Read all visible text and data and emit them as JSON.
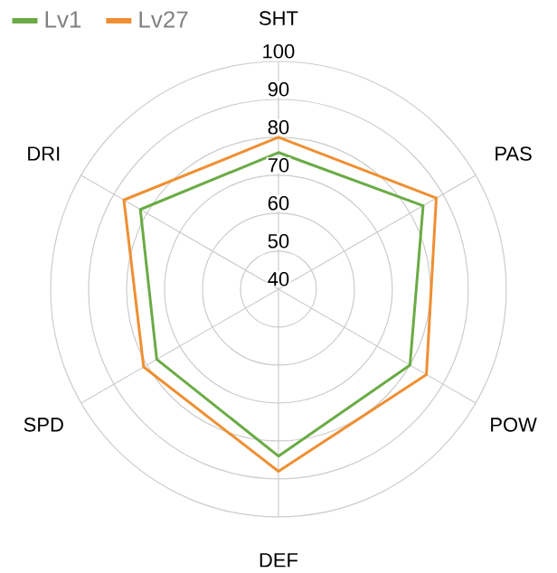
{
  "chart_data": {
    "type": "radar",
    "categories": [
      "SHT",
      "PAS",
      "POW",
      "DEF",
      "SPD",
      "DRI"
    ],
    "series": [
      {
        "name": "Lv1",
        "color": "#6aab45",
        "values": [
          76,
          84,
          80,
          84,
          77,
          82
        ]
      },
      {
        "name": "Lv27",
        "color": "#ef8f32",
        "values": [
          80,
          88,
          85,
          88,
          81,
          87
        ]
      }
    ],
    "ylim": [
      40,
      100
    ],
    "yticks": [
      40,
      50,
      60,
      70,
      80,
      90,
      100
    ],
    "grid": true,
    "legend": "top left"
  }
}
